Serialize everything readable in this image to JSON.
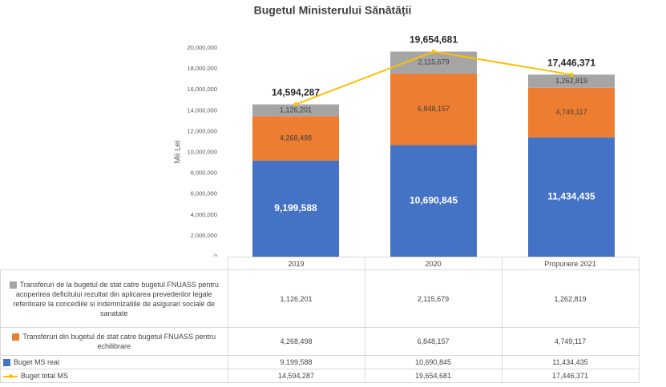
{
  "chart_data": {
    "type": "bar",
    "stacked": true,
    "title": "Bugetul Ministerului Sănătății",
    "y_label": "Mii Lei",
    "categories": [
      "2019",
      "2020",
      "Propunere 2021"
    ],
    "series": [
      {
        "name": "Transferuri de la bugetul de stat catre bugetul FNUASS pentru acoperirea deficitului rezultat din aplicarea prevederilor legale referitoare la concediile si indemnizatiile de asigurari sociale de sanatate",
        "type": "bar",
        "color": "#a5a5a5",
        "values": [
          1126201,
          2115679,
          1262819
        ],
        "value_labels": [
          "1,126,201",
          "2,115,679",
          "1,262,819"
        ]
      },
      {
        "name": "Transferuri din bugetul de stat catre bugetul FNUASS pentru echilibrare",
        "type": "bar",
        "color": "#ed7d31",
        "values": [
          4268498,
          6848157,
          4749117
        ],
        "value_labels": [
          "4,268,498",
          "6,848,157",
          "4,749,117"
        ]
      },
      {
        "name": "Buget MS real",
        "type": "bar",
        "color": "#4472c4",
        "values": [
          9199588,
          10690845,
          11434435
        ],
        "value_labels": [
          "9,199,588",
          "10,690,845",
          "11,434,435"
        ]
      },
      {
        "name": "Buget total MS",
        "type": "line",
        "color": "#ffc000",
        "values": [
          14594287,
          19654681,
          17446371
        ],
        "value_labels": [
          "14,594,287",
          "19,654,681",
          "17,446,371"
        ]
      }
    ],
    "ylim": [
      0,
      20000000
    ],
    "yticks": [
      0,
      {
        "value": 2000000,
        "label": "2,000,000"
      },
      {
        "value": 4000000,
        "label": "4,000,000"
      },
      {
        "value": 6000000,
        "label": "6,000,000"
      },
      {
        "value": 8000000,
        "label": "8,000,000"
      },
      {
        "value": 10000000,
        "label": "10,000,000"
      },
      {
        "value": 12000000,
        "label": "12,000,000"
      },
      {
        "value": 14000000,
        "label": "14,000,000"
      },
      {
        "value": 16000000,
        "label": "16,000,000"
      },
      {
        "value": 18000000,
        "label": "18,000,000"
      },
      {
        "value": 20000000,
        "label": "20,000,000"
      }
    ],
    "grid": false
  }
}
